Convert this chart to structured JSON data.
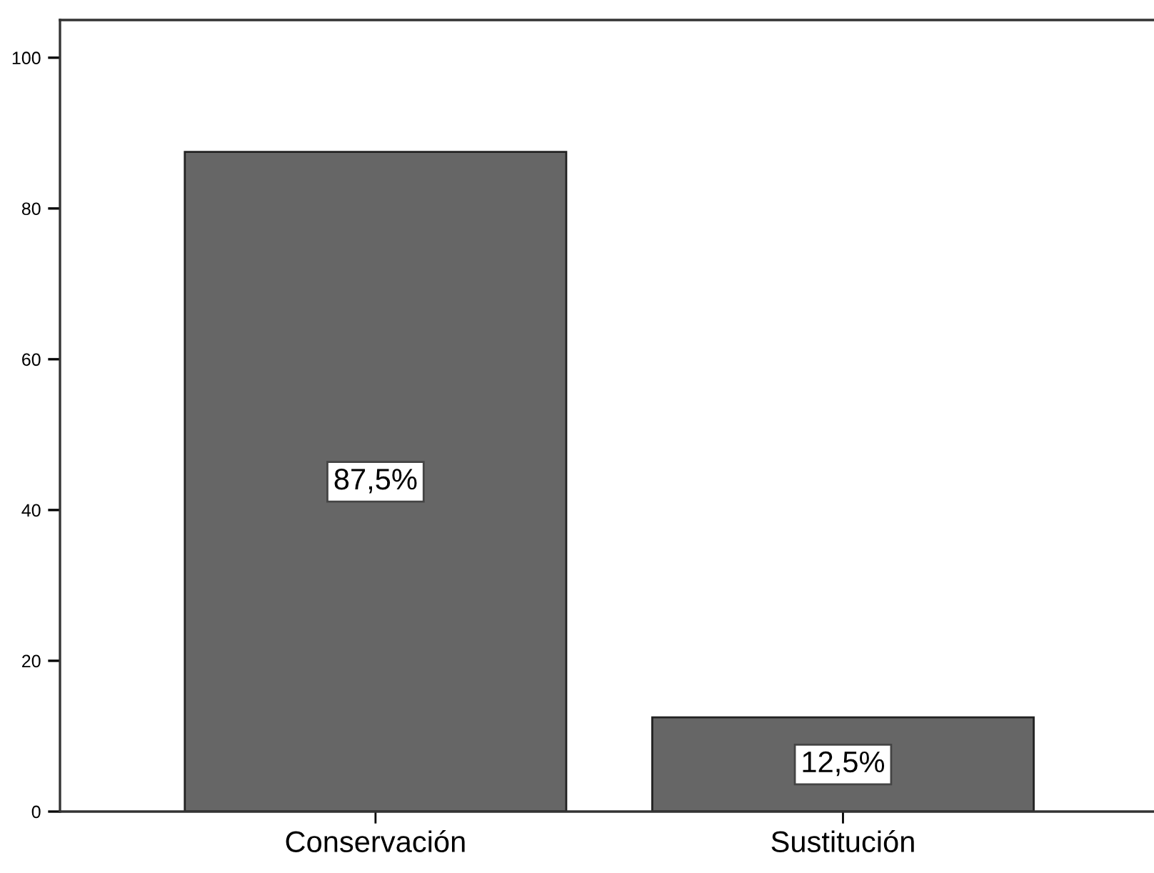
{
  "chart_data": {
    "type": "bar",
    "categories": [
      "Conservación",
      "Sustitución"
    ],
    "values": [
      87.5,
      12.5
    ],
    "value_labels": [
      "87,5%",
      "12,5%"
    ],
    "color": "#666666",
    "ylim": [
      0,
      105
    ],
    "yticks": [
      0,
      20,
      40,
      60,
      80,
      100
    ],
    "grid": false
  }
}
